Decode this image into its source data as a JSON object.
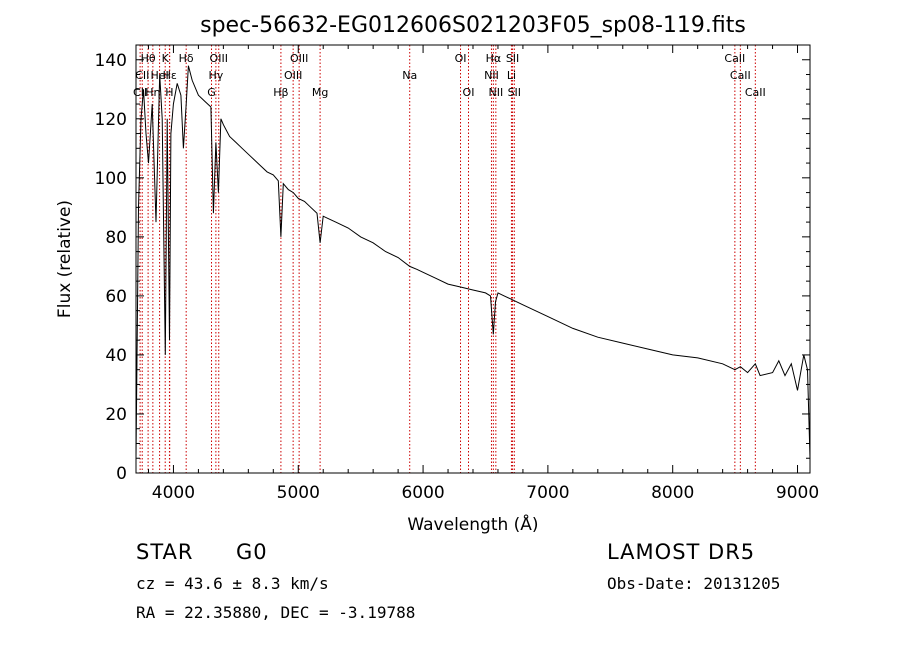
{
  "chart_data": {
    "type": "line",
    "title": "spec-56632-EG012606S021203F05_sp08-119.fits",
    "xlabel": "Wavelength (Å)",
    "ylabel": "Flux (relative)",
    "xlim": [
      3700,
      9100
    ],
    "ylim": [
      0,
      145
    ],
    "xticks": [
      4000,
      5000,
      6000,
      7000,
      8000,
      9000
    ],
    "yticks": [
      0,
      20,
      40,
      60,
      80,
      100,
      120,
      140
    ],
    "grid": false,
    "series": [
      {
        "x": [
          3700,
          3720,
          3740,
          3760,
          3780,
          3800,
          3830,
          3860,
          3890,
          3910,
          3935,
          3950,
          3968,
          3980,
          4000,
          4030,
          4060,
          4080,
          4102,
          4120,
          4150,
          4200,
          4250,
          4300,
          4320,
          4340,
          4360,
          4380,
          4400,
          4450,
          4500,
          4550,
          4600,
          4650,
          4700,
          4750,
          4800,
          4840,
          4861,
          4880,
          4920,
          4960,
          5000,
          5050,
          5100,
          5150,
          5175,
          5200,
          5250,
          5300,
          5400,
          5500,
          5600,
          5700,
          5800,
          5893,
          5950,
          6000,
          6100,
          6200,
          6300,
          6400,
          6500,
          6540,
          6563,
          6580,
          6600,
          6650,
          6700,
          6800,
          6900,
          7000,
          7200,
          7400,
          7600,
          7800,
          8000,
          8200,
          8400,
          8498,
          8542,
          8600,
          8662,
          8700,
          8800,
          8850,
          8900,
          8950,
          9000,
          9050,
          9080,
          9100
        ],
        "y": [
          5,
          90,
          120,
          130,
          115,
          105,
          125,
          85,
          135,
          120,
          40,
          120,
          45,
          115,
          125,
          132,
          128,
          110,
          125,
          138,
          133,
          128,
          126,
          124,
          88,
          112,
          95,
          120,
          118,
          114,
          112,
          110,
          108,
          106,
          104,
          102,
          101,
          99,
          80,
          98,
          96,
          95,
          93,
          92,
          90,
          88,
          78,
          87,
          86,
          85,
          83,
          80,
          78,
          75,
          73,
          70,
          69,
          68,
          66,
          64,
          63,
          62,
          61,
          60,
          47,
          58,
          61,
          60,
          59,
          57,
          55,
          53,
          49,
          46,
          44,
          42,
          40,
          39,
          37,
          35,
          36,
          34,
          37,
          33,
          34,
          38,
          33,
          37,
          28,
          40,
          35,
          5
        ]
      }
    ],
    "lines": [
      {
        "label": "Hθ",
        "x": 3797,
        "row": 1
      },
      {
        "label": "CII",
        "x": 3750,
        "row": 2
      },
      {
        "label": "CII",
        "x": 3733,
        "row": 3
      },
      {
        "label": "Hη",
        "x": 3835,
        "row": 3
      },
      {
        "label": "HeI",
        "x": 3889,
        "row": 2
      },
      {
        "label": "K",
        "x": 3934,
        "row": 1
      },
      {
        "label": "H",
        "x": 3968,
        "row": 3
      },
      {
        "label": "Hε",
        "x": 3970,
        "row": 2
      },
      {
        "label": "Hδ",
        "x": 4102,
        "row": 1
      },
      {
        "label": "OIII",
        "x": 4363,
        "row": 1
      },
      {
        "label": "Hγ",
        "x": 4340,
        "row": 2
      },
      {
        "label": "G",
        "x": 4305,
        "row": 3
      },
      {
        "label": "Hβ",
        "x": 4861,
        "row": 3
      },
      {
        "label": "OIII",
        "x": 5007,
        "row": 1
      },
      {
        "label": "OIII",
        "x": 4959,
        "row": 2
      },
      {
        "label": "Mg",
        "x": 5175,
        "row": 3
      },
      {
        "label": "Na",
        "x": 5893,
        "row": 2
      },
      {
        "label": "OI",
        "x": 6300,
        "row": 1
      },
      {
        "label": "OI",
        "x": 6364,
        "row": 3
      },
      {
        "label": "Hα",
        "x": 6563,
        "row": 1
      },
      {
        "label": "NII",
        "x": 6548,
        "row": 2
      },
      {
        "label": "NII",
        "x": 6583,
        "row": 3
      },
      {
        "label": "SII",
        "x": 6717,
        "row": 1
      },
      {
        "label": "Li",
        "x": 6708,
        "row": 2
      },
      {
        "label": "SII",
        "x": 6731,
        "row": 3
      },
      {
        "label": "CaII",
        "x": 8498,
        "row": 1
      },
      {
        "label": "CaII",
        "x": 8542,
        "row": 2
      },
      {
        "label": "CaII",
        "x": 8662,
        "row": 3
      }
    ]
  },
  "info": {
    "class": "STAR",
    "subclass": "G0",
    "survey": "LAMOST DR5",
    "cz": "cz = 43.6 ± 8.3 km/s",
    "obs_date": "Obs-Date: 20131205",
    "coords": "RA =  22.35880, DEC =  -3.19788"
  },
  "colors": {
    "line_marker": "#cc0000",
    "spectrum": "#000000"
  }
}
